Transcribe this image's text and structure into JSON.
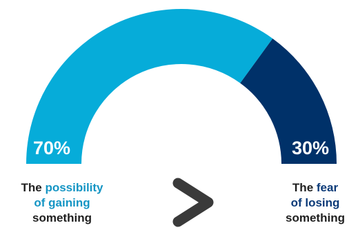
{
  "chart_data": {
    "type": "pie",
    "shape": "half-donut gauge",
    "slices": [
      {
        "label": "The possibility of gaining something",
        "value": 70,
        "display": "70%",
        "color": "#06acd9"
      },
      {
        "label": "The fear of losing something",
        "value": 30,
        "display": "30%",
        "color": "#003169"
      }
    ]
  },
  "captions": {
    "left": {
      "lead": "The",
      "highlight": "possibility of gaining",
      "tail": "something",
      "highlight_color": "#1595c4"
    },
    "right": {
      "lead": "The",
      "highlight": "fear of losing",
      "tail": "something",
      "highlight_color": "#0b3a78"
    }
  },
  "comparison_icon": "greater-than-icon"
}
